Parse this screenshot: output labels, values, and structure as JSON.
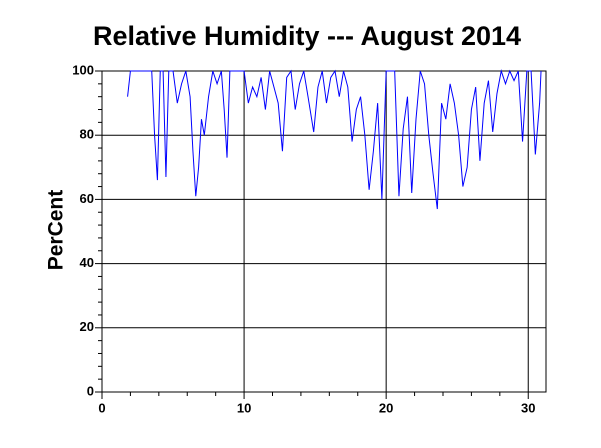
{
  "chart_data": {
    "type": "line",
    "title": "Relative Humidity --- August 2014",
    "ylabel": "PerCent",
    "x": [
      1.8,
      1.9,
      2.0,
      3.0,
      3.5,
      3.7,
      3.9,
      4.1,
      4.3,
      4.5,
      4.7,
      5.0,
      5.3,
      5.6,
      5.9,
      6.2,
      6.4,
      6.6,
      6.8,
      7.0,
      7.2,
      7.5,
      7.8,
      8.1,
      8.4,
      8.6,
      8.8,
      9.0,
      9.5,
      10.0,
      10.3,
      10.6,
      10.9,
      11.2,
      11.5,
      11.8,
      12.1,
      12.4,
      12.7,
      13.0,
      13.3,
      13.6,
      13.9,
      14.2,
      14.5,
      14.9,
      15.2,
      15.5,
      15.8,
      16.1,
      16.4,
      16.7,
      17.0,
      17.3,
      17.6,
      17.9,
      18.2,
      18.5,
      18.8,
      19.1,
      19.4,
      19.7,
      20.0,
      20.3,
      20.6,
      20.9,
      21.2,
      21.5,
      21.8,
      22.1,
      22.4,
      22.7,
      23.0,
      23.3,
      23.6,
      23.9,
      24.2,
      24.5,
      24.8,
      25.1,
      25.4,
      25.7,
      26.0,
      26.3,
      26.6,
      26.9,
      27.2,
      27.5,
      27.8,
      28.1,
      28.4,
      28.7,
      29.0,
      29.3,
      29.6,
      29.9,
      30.2,
      30.5,
      30.8,
      30.9
    ],
    "values": [
      92,
      96,
      100,
      100,
      100,
      80,
      66,
      100,
      100,
      67,
      100,
      100,
      90,
      96,
      100,
      92,
      75,
      61,
      70,
      85,
      80,
      92,
      100,
      96,
      100,
      88,
      73,
      100,
      100,
      100,
      90,
      95,
      92,
      98,
      88,
      100,
      95,
      90,
      75,
      98,
      100,
      88,
      96,
      100,
      92,
      81,
      95,
      100,
      90,
      98,
      100,
      92,
      100,
      95,
      78,
      88,
      92,
      80,
      63,
      75,
      90,
      60,
      100,
      100,
      100,
      61,
      82,
      92,
      62,
      85,
      100,
      96,
      80,
      68,
      57,
      90,
      85,
      96,
      90,
      80,
      64,
      70,
      88,
      95,
      72,
      90,
      97,
      81,
      93,
      100,
      96,
      100,
      97,
      100,
      78,
      100,
      100,
      74,
      90,
      100
    ],
    "color": "#0000ff",
    "xlim": [
      0,
      31.25
    ],
    "xticks": [
      0,
      10,
      20,
      30
    ],
    "xminorticks": [
      2,
      4,
      6,
      8,
      12,
      14,
      16,
      18,
      22,
      24,
      26,
      28
    ],
    "ylim": [
      0,
      100
    ],
    "yticks": [
      0,
      20,
      40,
      60,
      80,
      100
    ],
    "yminorticks": [
      4,
      8,
      12,
      16,
      24,
      28,
      32,
      36,
      44,
      48,
      52,
      56,
      64,
      68,
      72,
      76,
      84,
      88,
      92,
      96
    ],
    "grid": true
  }
}
